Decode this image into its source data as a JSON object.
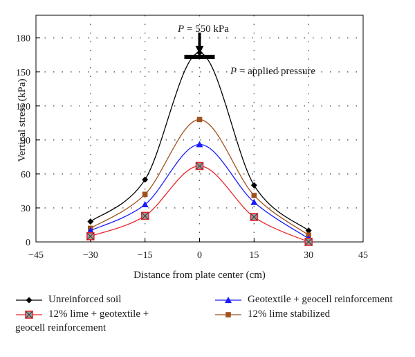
{
  "chart_data": {
    "type": "line",
    "xlabel": "Distance from plate center (cm)",
    "ylabel": "Vertical stress (kPa)",
    "xlim": [
      -45,
      45
    ],
    "ylim": [
      0,
      200
    ],
    "xticks": [
      -45,
      -30,
      -15,
      0,
      15,
      30,
      45
    ],
    "yticks": [
      0,
      30,
      60,
      90,
      120,
      150,
      180
    ],
    "grid": true,
    "annotations": {
      "pressure_label": "P = 550 kPa",
      "pressure_def": "P = applied pressure"
    },
    "series": [
      {
        "name": "Unreinforced soil",
        "color": "#000000",
        "marker": "diamond",
        "x": [
          -30,
          -15,
          0,
          15,
          30
        ],
        "y": [
          18,
          55,
          167,
          50,
          10
        ]
      },
      {
        "name": "Geotextile + geocell reinforcement",
        "color": "#1a1aff",
        "marker": "triangle",
        "x": [
          -30,
          -15,
          0,
          15,
          30
        ],
        "y": [
          10,
          33,
          86,
          35,
          3
        ]
      },
      {
        "name": "12% lime + geotextile + geocell reinforcement",
        "color": "#e8262a",
        "marker": "crossed-square",
        "x": [
          -30,
          -15,
          0,
          15,
          30
        ],
        "y": [
          5,
          23,
          67,
          22,
          0
        ]
      },
      {
        "name": "12% lime stabilized",
        "color": "#a0521e",
        "marker": "square",
        "x": [
          -30,
          -15,
          0,
          15,
          30
        ],
        "y": [
          12,
          42,
          108,
          41,
          6
        ]
      }
    ],
    "legend": {
      "placement": "bottom",
      "items": [
        {
          "lines": [
            "Unreinforced soil"
          ],
          "series": 0
        },
        {
          "lines": [
            "Geotextile + geocell reinforcement"
          ],
          "series": 1
        },
        {
          "lines": [
            "12% lime + geotextile +",
            "geocell reinforcement"
          ],
          "series": 2
        },
        {
          "lines": [
            "12% lime stabilized"
          ],
          "series": 3
        }
      ]
    }
  }
}
